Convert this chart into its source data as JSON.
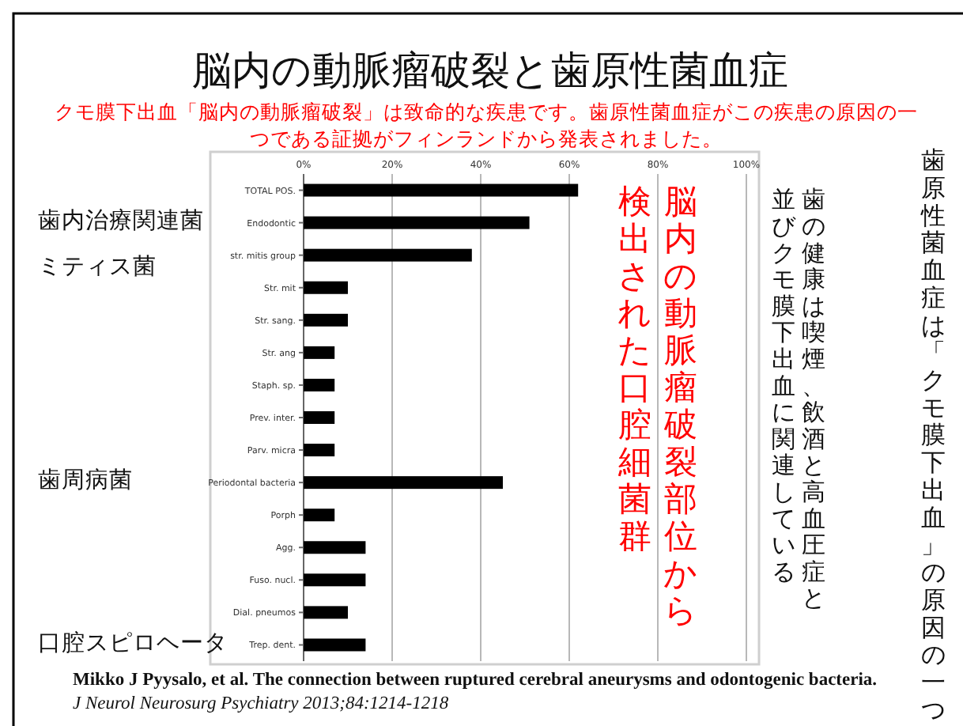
{
  "chart_data": {
    "type": "bar",
    "orientation": "horizontal",
    "title": "脳内の動脈瘤破裂と歯原性菌血症",
    "subtitle": "クモ膜下出血「脳内の動脈瘤破裂」は致命的な疾患です。歯原性菌血症がこの疾患の原因の一つである証拠がフィンランドから発表されました。",
    "categories": [
      "TOTAL POS.",
      "Endodontic",
      "str. mitis group",
      "Str. mit",
      "Str. sang.",
      "Str. ang",
      "Staph. sp.",
      "Prev. inter.",
      "Parv. micra",
      "Periodontal bacteria",
      "Porph",
      "Agg.",
      "Fuso. nucl.",
      "Dial. pneumos",
      "Trep. dent."
    ],
    "values": [
      62,
      51,
      38,
      10,
      10,
      7,
      7,
      7,
      7,
      45,
      7,
      14,
      14,
      10,
      14
    ],
    "color": "#000000",
    "xlim": [
      0,
      100
    ],
    "xticks": [
      {
        "value": 0,
        "label": "0%"
      },
      {
        "value": 20,
        "label": "20%"
      },
      {
        "value": 40,
        "label": "40%"
      },
      {
        "value": 60,
        "label": "60%"
      },
      {
        "value": 80,
        "label": "80%"
      },
      {
        "value": 100,
        "label": "100%"
      }
    ],
    "grid": "x",
    "annotations": [
      "歯内治療関連菌",
      "ミティス菌",
      "歯周病菌",
      "口腔スピロヘータ",
      "脳内の動脈瘤破裂部位から",
      "検出された口腔細菌群",
      "歯の健康は喫煙、飲酒と高血圧症と",
      "並びクモ膜下出血に関連している",
      "歯原性菌血症は「クモ膜下出血」の原因の一つ",
      "Mikko J Pyysalo, et al. The connection between ruptured cerebral aneurysms and odontogenic bacteria.",
      "J Neurol Neurosurg Psychiatry 2013;84:1214-1218"
    ]
  }
}
